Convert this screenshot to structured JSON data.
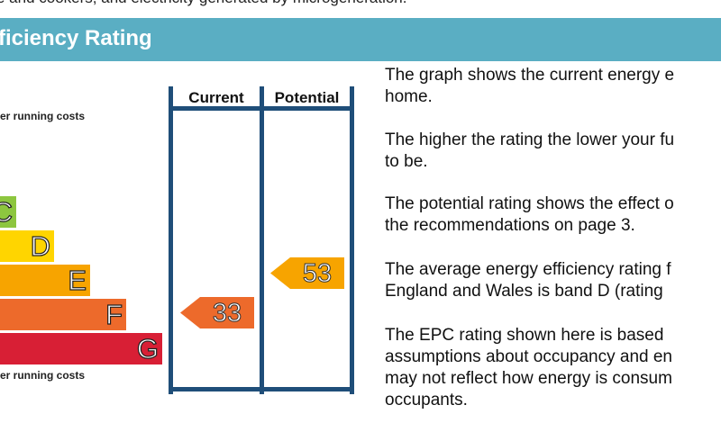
{
  "top_text": "e and cookers, and electricity generated by microgeneration.",
  "header": {
    "title": "ficiency Rating",
    "bg_color": "#5aaec3"
  },
  "chart": {
    "top_caption": "er running costs",
    "bottom_caption": "er running costs",
    "columns": {
      "current": "Current",
      "potential": "Potential"
    },
    "bands": [
      {
        "letter": "C",
        "color": "#8dc63f"
      },
      {
        "letter": "D",
        "color": "#ffd500"
      },
      {
        "letter": "E",
        "color": "#f7a400"
      },
      {
        "letter": "F",
        "color": "#ed6a2b"
      },
      {
        "letter": "G",
        "color": "#d81f35"
      }
    ],
    "current": {
      "value": "33",
      "band": "F",
      "color": "#ed6a2b"
    },
    "potential": {
      "value": "53",
      "band": "E",
      "color": "#f7a400"
    }
  },
  "description": [
    [
      "The graph shows the current energy e",
      "home."
    ],
    [
      "The higher the rating the lower your fu",
      "to be."
    ],
    [
      "The potential rating shows the effect o",
      "the recommendations on page 3."
    ],
    [
      "The average energy efficiency rating f",
      "England and Wales is band D (rating"
    ],
    [
      "The EPC rating shown here is based",
      "assumptions about occupancy and en",
      "may not reflect how energy is consum",
      "occupants."
    ]
  ]
}
